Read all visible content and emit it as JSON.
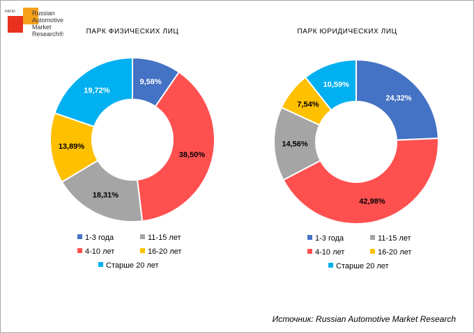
{
  "logo": {
    "small_text": "НАПИ",
    "lines": [
      "Russian",
      "Automotive",
      "Market",
      "Research®"
    ]
  },
  "colors": {
    "1-3": "#4472c4",
    "4-10": "#ff5050",
    "11-15": "#a5a5a5",
    "16-20": "#ffc000",
    "20+": "#00b0f0"
  },
  "legend": {
    "items": [
      {
        "key": "1-3",
        "label": "1-3 года"
      },
      {
        "key": "11-15",
        "label": "11-15 лет"
      },
      {
        "key": "4-10",
        "label": "4-10 лет"
      },
      {
        "key": "16-20",
        "label": "16-20 лет"
      },
      {
        "key": "20+",
        "label": "Старше 20 лет"
      }
    ]
  },
  "source": "Источник: Russian Automotive Market Research",
  "chart_data": [
    {
      "type": "pie",
      "variant": "donut",
      "title": "ПАРК ФИЗИЧЕСКИХ ЛИЦ",
      "slices": [
        {
          "key": "1-3",
          "label": "1-3 года",
          "value": 9.58,
          "text": "9,58%"
        },
        {
          "key": "4-10",
          "label": "4-10 лет",
          "value": 38.5,
          "text": "38,50%"
        },
        {
          "key": "11-15",
          "label": "11-15 лет",
          "value": 18.31,
          "text": "18,31%"
        },
        {
          "key": "16-20",
          "label": "16-20 лет",
          "value": 13.89,
          "text": "13,89%"
        },
        {
          "key": "20+",
          "label": "Старше 20 лет",
          "value": 19.72,
          "text": "19,72%"
        }
      ],
      "legend_placement": "bottom"
    },
    {
      "type": "pie",
      "variant": "donut",
      "title": "ПАРК ЮРИДИЧЕСКИХ ЛИЦ",
      "slices": [
        {
          "key": "1-3",
          "label": "1-3 года",
          "value": 24.32,
          "text": "24,32%"
        },
        {
          "key": "4-10",
          "label": "4-10 лет",
          "value": 42.98,
          "text": "42,98%"
        },
        {
          "key": "11-15",
          "label": "11-15 лет",
          "value": 14.56,
          "text": "14,56%"
        },
        {
          "key": "16-20",
          "label": "16-20 лет",
          "value": 7.54,
          "text": "7,54%"
        },
        {
          "key": "20+",
          "label": "Старше 20 лет",
          "value": 10.59,
          "text": "10,59%"
        }
      ],
      "legend_placement": "bottom"
    }
  ]
}
